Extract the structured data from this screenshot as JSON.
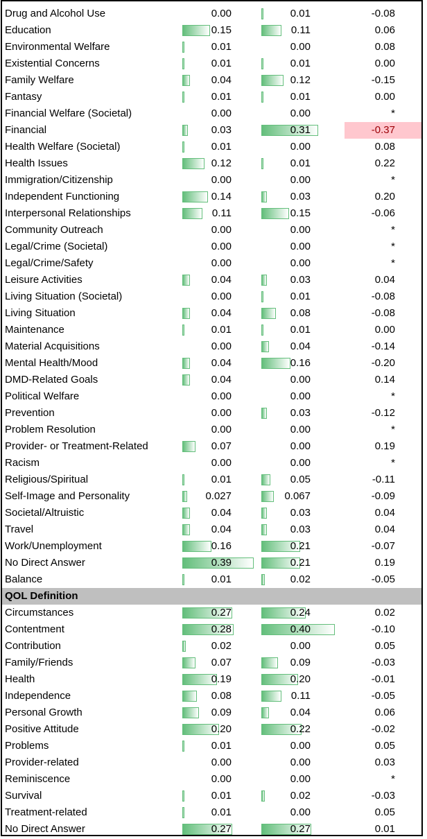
{
  "colors": {
    "bar": "#63be7b",
    "highlight_fill": "#ffc7ce",
    "highlight_text": "#9c0006",
    "section_fill": "#bfbfbf"
  },
  "bar_scale_max": 0.4,
  "rows": [
    {
      "type": "data",
      "label": "Drug and Alcohol Use",
      "v1": "0.00",
      "v2": "0.01",
      "diff": "-0.08"
    },
    {
      "type": "data",
      "label": "Education",
      "v1": "0.15",
      "v2": "0.11",
      "diff": "0.06"
    },
    {
      "type": "data",
      "label": "Environmental Welfare",
      "v1": "0.01",
      "v2": "0.00",
      "diff": "0.08"
    },
    {
      "type": "data",
      "label": "Existential Concerns",
      "v1": "0.01",
      "v2": "0.01",
      "diff": "0.00"
    },
    {
      "type": "data",
      "label": "Family Welfare",
      "v1": "0.04",
      "v2": "0.12",
      "diff": "-0.15"
    },
    {
      "type": "data",
      "label": "Fantasy",
      "v1": "0.01",
      "v2": "0.01",
      "diff": "0.00"
    },
    {
      "type": "data",
      "label": "Financial Welfare (Societal)",
      "v1": "0.00",
      "v2": "0.00",
      "diff": "*"
    },
    {
      "type": "data",
      "label": "Financial",
      "v1": "0.03",
      "v2": "0.31",
      "diff": "-0.37",
      "highlight": true
    },
    {
      "type": "data",
      "label": "Health Welfare (Societal)",
      "v1": "0.01",
      "v2": "0.00",
      "diff": "0.08"
    },
    {
      "type": "data",
      "label": "Health Issues",
      "v1": "0.12",
      "v2": "0.01",
      "diff": "0.22"
    },
    {
      "type": "data",
      "label": "Immigration/Citizenship",
      "v1": "0.00",
      "v2": "0.00",
      "diff": "*"
    },
    {
      "type": "data",
      "label": "Independent Functioning",
      "v1": "0.14",
      "v2": "0.03",
      "diff": "0.20"
    },
    {
      "type": "data",
      "label": "Interpersonal Relationships",
      "v1": "0.11",
      "v2": "0.15",
      "diff": "-0.06"
    },
    {
      "type": "data",
      "label": "Community Outreach",
      "v1": "0.00",
      "v2": "0.00",
      "diff": "*"
    },
    {
      "type": "data",
      "label": "Legal/Crime (Societal)",
      "v1": "0.00",
      "v2": "0.00",
      "diff": "*"
    },
    {
      "type": "data",
      "label": "Legal/Crime/Safety",
      "v1": "0.00",
      "v2": "0.00",
      "diff": "*"
    },
    {
      "type": "data",
      "label": "Leisure Activities",
      "v1": "0.04",
      "v2": "0.03",
      "diff": "0.04"
    },
    {
      "type": "data",
      "label": "Living Situation (Societal)",
      "v1": "0.00",
      "v2": "0.01",
      "diff": "-0.08"
    },
    {
      "type": "data",
      "label": "Living Situation",
      "v1": "0.04",
      "v2": "0.08",
      "diff": "-0.08"
    },
    {
      "type": "data",
      "label": "Maintenance",
      "v1": "0.01",
      "v2": "0.01",
      "diff": "0.00"
    },
    {
      "type": "data",
      "label": "Material Acquisitions",
      "v1": "0.00",
      "v2": "0.04",
      "diff": "-0.14"
    },
    {
      "type": "data",
      "label": "Mental Health/Mood",
      "v1": "0.04",
      "v2": "0.16",
      "diff": "-0.20"
    },
    {
      "type": "data",
      "label": "DMD-Related Goals",
      "v1": "0.04",
      "v2": "0.00",
      "diff": "0.14"
    },
    {
      "type": "data",
      "label": "Political Welfare",
      "v1": "0.00",
      "v2": "0.00",
      "diff": "*"
    },
    {
      "type": "data",
      "label": "Prevention",
      "v1": "0.00",
      "v2": "0.03",
      "diff": "-0.12"
    },
    {
      "type": "data",
      "label": "Problem Resolution",
      "v1": "0.00",
      "v2": "0.00",
      "diff": "*"
    },
    {
      "type": "data",
      "label": "Provider- or Treatment-Related",
      "v1": "0.07",
      "v2": "0.00",
      "diff": "0.19"
    },
    {
      "type": "data",
      "label": "Racism",
      "v1": "0.00",
      "v2": "0.00",
      "diff": "*"
    },
    {
      "type": "data",
      "label": "Religious/Spiritual",
      "v1": "0.01",
      "v2": "0.05",
      "diff": "-0.11"
    },
    {
      "type": "data",
      "label": "Self-Image and Personality",
      "v1": "0.027",
      "v2": "0.067",
      "diff": "-0.09"
    },
    {
      "type": "data",
      "label": "Societal/Altruistic",
      "v1": "0.04",
      "v2": "0.03",
      "diff": "0.04"
    },
    {
      "type": "data",
      "label": "Travel",
      "v1": "0.04",
      "v2": "0.03",
      "diff": "0.04"
    },
    {
      "type": "data",
      "label": "Work/Unemployment",
      "v1": "0.16",
      "v2": "0.21",
      "diff": "-0.07"
    },
    {
      "type": "data",
      "label": "No Direct Answer",
      "v1": "0.39",
      "v2": "0.21",
      "diff": "0.19"
    },
    {
      "type": "data",
      "label": "Balance",
      "v1": "0.01",
      "v2": "0.02",
      "diff": "-0.05"
    },
    {
      "type": "section",
      "label": "QOL Definition"
    },
    {
      "type": "data",
      "label": "Circumstances",
      "v1": "0.27",
      "v2": "0.24",
      "diff": "0.02"
    },
    {
      "type": "data",
      "label": "Contentment",
      "v1": "0.28",
      "v2": "0.40",
      "diff": "-0.10"
    },
    {
      "type": "data",
      "label": "Contribution",
      "v1": "0.02",
      "v2": "0.00",
      "diff": "0.05"
    },
    {
      "type": "data",
      "label": "Family/Friends",
      "v1": "0.07",
      "v2": "0.09",
      "diff": "-0.03"
    },
    {
      "type": "data",
      "label": "Health",
      "v1": "0.19",
      "v2": "0.20",
      "diff": "-0.01"
    },
    {
      "type": "data",
      "label": "Independence",
      "v1": "0.08",
      "v2": "0.11",
      "diff": "-0.05"
    },
    {
      "type": "data",
      "label": "Personal Growth",
      "v1": "0.09",
      "v2": "0.04",
      "diff": "0.06"
    },
    {
      "type": "data",
      "label": "Positive Attitude",
      "v1": "0.20",
      "v2": "0.22",
      "diff": "-0.02"
    },
    {
      "type": "data",
      "label": "Problems",
      "v1": "0.01",
      "v2": "0.00",
      "diff": "0.05"
    },
    {
      "type": "data",
      "label": "Provider-related",
      "v1": "0.00",
      "v2": "0.00",
      "diff": "0.03"
    },
    {
      "type": "data",
      "label": "Reminiscence",
      "v1": "0.00",
      "v2": "0.00",
      "diff": "*"
    },
    {
      "type": "data",
      "label": "Survival",
      "v1": "0.01",
      "v2": "0.02",
      "diff": "-0.03"
    },
    {
      "type": "data",
      "label": "Treatment-related",
      "v1": "0.01",
      "v2": "0.00",
      "diff": "0.05"
    },
    {
      "type": "data",
      "label": "No Direct Answer",
      "v1": "0.27",
      "v2": "0.27",
      "diff": "0.01"
    }
  ]
}
